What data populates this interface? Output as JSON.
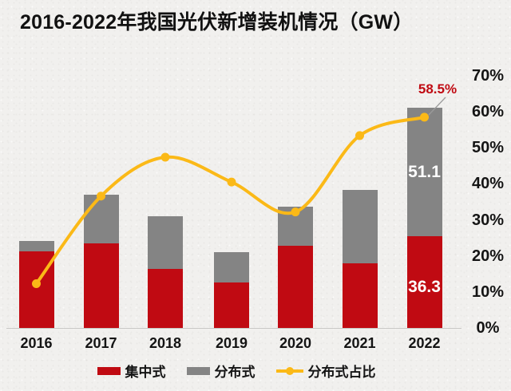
{
  "title": "2016-2022年我国光伏新增装机情况（GW）",
  "colors": {
    "background": "#f1f0ee",
    "centralized_bar": "#c00a12",
    "distributed_bar": "#848484",
    "ratio_line": "#fbb917",
    "annotation_text": "#c00a12",
    "bar_value_label": "#ffffff",
    "axis_text": "#141414",
    "baseline": "#c9c8c5",
    "leader_line": "#9b9b9b"
  },
  "chart_data": {
    "type": "combo-stacked-bar-line",
    "title": "2016-2022年我国光伏新增装机情况（GW）",
    "categories": [
      "2016",
      "2017",
      "2018",
      "2019",
      "2020",
      "2021",
      "2022"
    ],
    "series": [
      {
        "name": "集中式",
        "type": "bar",
        "stacked": true,
        "color": "#c00a12",
        "values_gw": [
          30.3,
          33.6,
          23.3,
          17.9,
          32.7,
          25.6,
          36.3
        ]
      },
      {
        "name": "分布式",
        "type": "bar",
        "stacked": true,
        "color": "#848484",
        "values_gw": [
          4.2,
          19.4,
          21.0,
          12.2,
          15.5,
          29.3,
          51.1
        ]
      },
      {
        "name": "分布式占比",
        "type": "line",
        "color": "#fbb917",
        "values_pct": [
          12.3,
          36.6,
          47.4,
          40.5,
          32.2,
          53.4,
          58.5
        ]
      }
    ],
    "bar_axis": {
      "min": 0,
      "max": 100,
      "unit": "GW",
      "visible": false
    },
    "pct_axis": {
      "min": 0,
      "max": 70,
      "step": 10,
      "position": "right",
      "tick_labels": [
        "0%",
        "10%",
        "20%",
        "30%",
        "40%",
        "50%",
        "60%",
        "70%"
      ]
    },
    "grid": false,
    "legend_position": "bottom",
    "data_labels": [
      {
        "category": "2022",
        "series": "分布式",
        "text": "51.1"
      },
      {
        "category": "2022",
        "series": "集中式",
        "text": "36.3"
      },
      {
        "category": "2022",
        "series": "分布式占比",
        "text": "58.5%"
      }
    ]
  }
}
